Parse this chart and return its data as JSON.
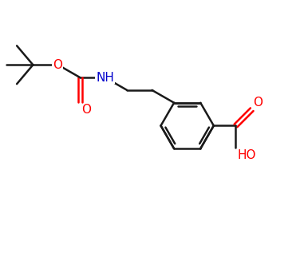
{
  "background_color": "#ffffff",
  "bond_color": "#1a1a1a",
  "oxygen_color": "#ff0000",
  "nitrogen_color": "#0000cc",
  "line_width": 1.8,
  "figsize": [
    3.81,
    3.37
  ],
  "dpi": 100,
  "xlim": [
    0,
    10
  ],
  "ylim": [
    0,
    9
  ]
}
